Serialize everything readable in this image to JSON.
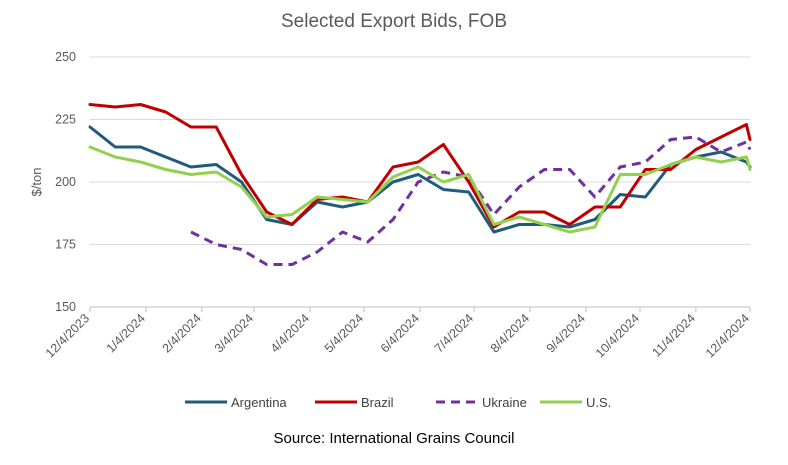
{
  "chart_data": {
    "type": "line",
    "title": "Selected Export Bids, FOB",
    "ylabel": "$/ton",
    "xlabel": "",
    "ylim": [
      150,
      250
    ],
    "yticks": [
      150,
      175,
      200,
      225,
      250
    ],
    "xticks": [
      "12/4/2023",
      "1/4/2024",
      "2/4/2024",
      "3/4/2024",
      "4/4/2024",
      "5/4/2024",
      "6/4/2024",
      "7/4/2024",
      "8/4/2024",
      "9/4/2024",
      "10/4/2024",
      "11/4/2024",
      "12/4/2024"
    ],
    "grid": "horizontal",
    "legend_position": "bottom",
    "source": "Source: International Grains Council",
    "x": [
      "12/4/2023",
      "12/18/2023",
      "1/1/2024",
      "1/15/2024",
      "1/29/2024",
      "2/12/2024",
      "2/26/2024",
      "3/11/2024",
      "3/25/2024",
      "4/8/2024",
      "4/22/2024",
      "5/6/2024",
      "5/20/2024",
      "6/3/2024",
      "6/17/2024",
      "7/1/2024",
      "7/15/2024",
      "7/29/2024",
      "8/12/2024",
      "8/26/2024",
      "9/9/2024",
      "9/23/2024",
      "10/7/2024",
      "10/21/2024",
      "11/4/2024",
      "11/18/2024",
      "12/2/2024",
      "12/4/2024"
    ],
    "series": [
      {
        "name": "Argentina",
        "color": "#1f5b7a",
        "dash": "solid",
        "values": [
          222,
          214,
          214,
          210,
          206,
          207,
          200,
          185,
          183,
          192,
          190,
          192,
          200,
          203,
          197,
          196,
          180,
          183,
          183,
          182,
          185,
          195,
          194,
          207,
          210,
          212,
          208,
          206
        ]
      },
      {
        "name": "Brazil",
        "color": "#c00000",
        "dash": "solid",
        "values": [
          231,
          230,
          231,
          228,
          222,
          222,
          203,
          188,
          183,
          193,
          194,
          192,
          206,
          208,
          215,
          200,
          182,
          188,
          188,
          183,
          190,
          190,
          205,
          205,
          213,
          218,
          223,
          217
        ]
      },
      {
        "name": "Ukraine",
        "color": "#7030a0",
        "dash": "dashed",
        "values": [
          null,
          null,
          null,
          null,
          180,
          175,
          173,
          167,
          167,
          172,
          180,
          176,
          185,
          200,
          204,
          202,
          187,
          198,
          205,
          205,
          194,
          206,
          208,
          217,
          218,
          212,
          216,
          213
        ]
      },
      {
        "name": "U.S.",
        "color": "#92d050",
        "dash": "solid",
        "values": [
          214,
          210,
          208,
          205,
          203,
          204,
          198,
          186,
          187,
          194,
          193,
          192,
          202,
          206,
          200,
          203,
          183,
          186,
          183,
          180,
          182,
          203,
          203,
          207,
          210,
          208,
          210,
          205
        ]
      }
    ]
  }
}
